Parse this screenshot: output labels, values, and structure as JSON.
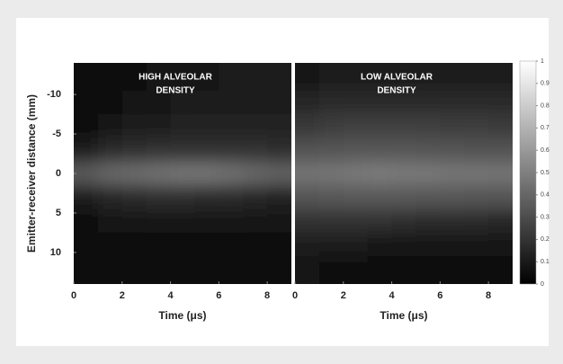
{
  "chart_data": [
    {
      "type": "heatmap",
      "title": [
        "HIGH ALVEOLAR",
        "DENSITY"
      ],
      "ylabel": "Emitter-receiver distance (mm)",
      "xlabel": "Time (μs)",
      "xlim": [
        0,
        9
      ],
      "xticks": [
        0,
        2,
        4,
        6,
        8
      ],
      "ylim": [
        -14,
        14
      ],
      "yticks": [
        -10,
        -5,
        0,
        5,
        10
      ],
      "x": [
        0.5,
        1.5,
        2.5,
        3.5,
        4.5,
        5.5,
        6.5,
        7.5,
        8.5
      ],
      "y": [
        -12,
        -9,
        -6,
        -3,
        0,
        3,
        6,
        9,
        12
      ],
      "z": [
        [
          0.05,
          0.05,
          0.06,
          0.07,
          0.08,
          0.09,
          0.1,
          0.1,
          0.1
        ],
        [
          0.05,
          0.06,
          0.07,
          0.09,
          0.1,
          0.11,
          0.12,
          0.12,
          0.12
        ],
        [
          0.06,
          0.08,
          0.1,
          0.12,
          0.13,
          0.14,
          0.14,
          0.14,
          0.14
        ],
        [
          0.12,
          0.16,
          0.18,
          0.2,
          0.2,
          0.2,
          0.2,
          0.19,
          0.18
        ],
        [
          0.35,
          0.4,
          0.42,
          0.44,
          0.45,
          0.45,
          0.43,
          0.4,
          0.38
        ],
        [
          0.12,
          0.15,
          0.17,
          0.18,
          0.18,
          0.17,
          0.16,
          0.15,
          0.14
        ],
        [
          0.05,
          0.07,
          0.08,
          0.09,
          0.09,
          0.09,
          0.08,
          0.08,
          0.08
        ],
        [
          0.04,
          0.05,
          0.05,
          0.06,
          0.06,
          0.06,
          0.06,
          0.05,
          0.05
        ],
        [
          0.03,
          0.04,
          0.04,
          0.04,
          0.04,
          0.04,
          0.04,
          0.04,
          0.04
        ]
      ]
    },
    {
      "type": "heatmap",
      "title": [
        "LOW ALVEOLAR",
        "DENSITY"
      ],
      "xlabel": "Time (μs)",
      "xlim": [
        0,
        9
      ],
      "xticks": [
        0,
        2,
        4,
        6,
        8
      ],
      "ylim": [
        -14,
        14
      ],
      "x": [
        0.5,
        1.5,
        2.5,
        3.5,
        4.5,
        5.5,
        6.5,
        7.5,
        8.5
      ],
      "y": [
        -12,
        -9,
        -6,
        -3,
        0,
        3,
        6,
        9,
        12
      ],
      "z": [
        [
          0.08,
          0.1,
          0.12,
          0.12,
          0.12,
          0.12,
          0.12,
          0.12,
          0.12
        ],
        [
          0.15,
          0.16,
          0.17,
          0.17,
          0.17,
          0.17,
          0.16,
          0.16,
          0.16
        ],
        [
          0.22,
          0.24,
          0.25,
          0.25,
          0.25,
          0.25,
          0.24,
          0.24,
          0.23
        ],
        [
          0.32,
          0.33,
          0.34,
          0.34,
          0.34,
          0.33,
          0.33,
          0.32,
          0.32
        ],
        [
          0.45,
          0.46,
          0.47,
          0.48,
          0.47,
          0.47,
          0.46,
          0.46,
          0.45
        ],
        [
          0.33,
          0.34,
          0.35,
          0.35,
          0.35,
          0.34,
          0.34,
          0.33,
          0.33
        ],
        [
          0.2,
          0.2,
          0.2,
          0.19,
          0.18,
          0.17,
          0.16,
          0.16,
          0.15
        ],
        [
          0.12,
          0.11,
          0.1,
          0.09,
          0.08,
          0.08,
          0.08,
          0.08,
          0.08
        ],
        [
          0.08,
          0.06,
          0.05,
          0.04,
          0.04,
          0.04,
          0.04,
          0.04,
          0.04
        ]
      ],
      "colorbar": {
        "lim": [
          0,
          1
        ],
        "ticks": [
          0,
          0.1,
          0.2,
          0.3,
          0.4,
          0.5,
          0.6,
          0.7,
          0.8,
          0.9,
          1
        ]
      }
    }
  ]
}
